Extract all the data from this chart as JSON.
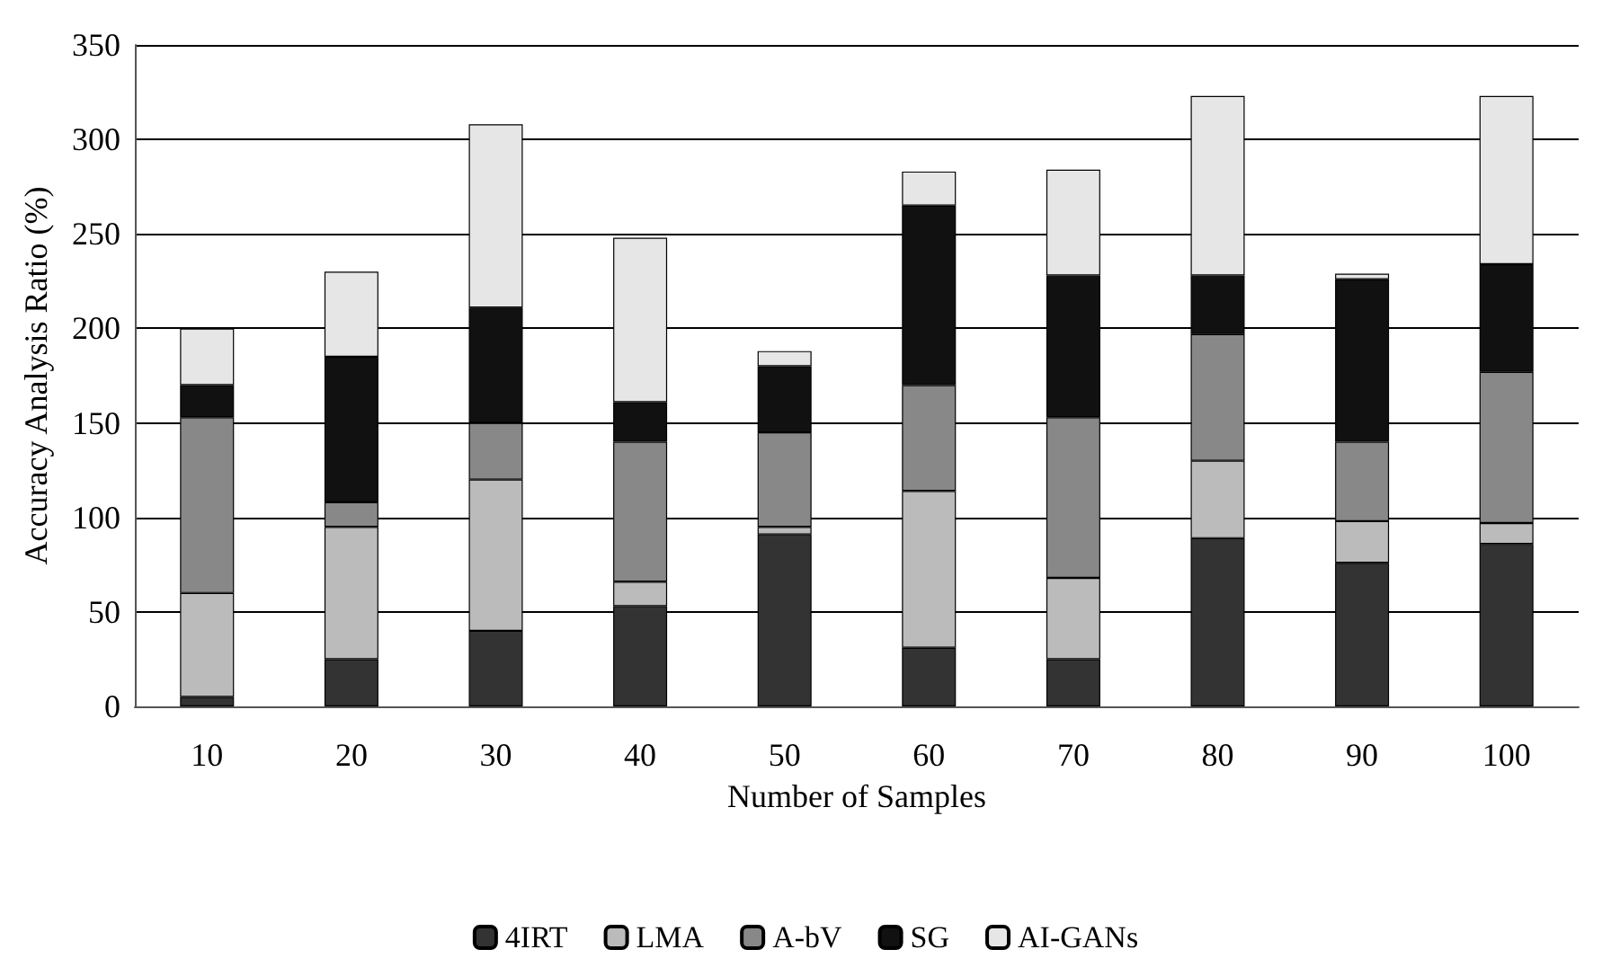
{
  "chart_data": {
    "type": "bar",
    "stacked": true,
    "xlabel": "Number of Samples",
    "ylabel": "Accuracy Analysis Ratio (%)",
    "categories": [
      "10",
      "20",
      "30",
      "40",
      "50",
      "60",
      "70",
      "80",
      "90",
      "100"
    ],
    "series": [
      {
        "name": "4IRT",
        "color": "#333333",
        "values": [
          5,
          25,
          40,
          53,
          91,
          31,
          25,
          89,
          76,
          86
        ]
      },
      {
        "name": "LMA",
        "color": "#bbbbbb",
        "values": [
          55,
          70,
          80,
          13,
          4,
          83,
          43,
          41,
          22,
          11
        ]
      },
      {
        "name": "A-bV",
        "color": "#888888",
        "values": [
          93,
          13,
          30,
          74,
          50,
          56,
          85,
          67,
          42,
          80
        ]
      },
      {
        "name": "SG",
        "color": "#111111",
        "values": [
          17,
          77,
          61,
          21,
          35,
          95,
          75,
          31,
          86,
          57
        ]
      },
      {
        "name": "AI-GANs",
        "color": "#e6e6e6",
        "values": [
          30,
          45,
          97,
          87,
          8,
          18,
          56,
          95,
          3,
          89
        ]
      }
    ],
    "ylim": [
      0,
      350
    ],
    "yticks": [
      0,
      50,
      100,
      150,
      200,
      250,
      300,
      350
    ],
    "grid": "y",
    "legend": "bottom"
  }
}
